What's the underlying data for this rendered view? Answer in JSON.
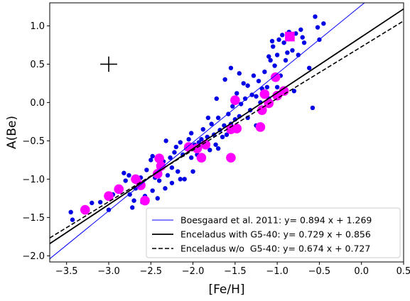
{
  "chart_data": {
    "type": "scatter",
    "xlabel": "[Fe/H]",
    "ylabel": "A(Be)",
    "xlim": [
      -3.7,
      0.5
    ],
    "ylim": [
      -2.08,
      1.3
    ],
    "x_ticks": [
      -3.5,
      -3.0,
      -2.5,
      -2.0,
      -1.5,
      -1.0,
      -0.5,
      0.0,
      0.5
    ],
    "x_tick_labels": [
      "−3.5",
      "−3.0",
      "−2.5",
      "−2.0",
      "−1.5",
      "−1.0",
      "−0.5",
      "0.0",
      "0.5"
    ],
    "y_ticks": [
      -2.0,
      -1.5,
      -1.0,
      -0.5,
      0.0,
      0.5,
      1.0
    ],
    "y_tick_labels": [
      "−2.0",
      "−1.5",
      "−1.0",
      "−0.5",
      "0.0",
      "0.5",
      "1.0"
    ],
    "grid": false,
    "legend_position": "lower-right",
    "error_bar": {
      "x": -3.0,
      "y": 0.5,
      "xerr": 0.1,
      "yerr": 0.1,
      "color": "#000000"
    },
    "series": [
      {
        "kind": "points",
        "color": "#0000e6",
        "points": [
          [
            -3.45,
            -1.43
          ],
          [
            -3.43,
            -1.53
          ],
          [
            -3.2,
            -1.31
          ],
          [
            -3.1,
            -1.3
          ],
          [
            -3.0,
            -1.4
          ],
          [
            -2.95,
            -1.2
          ],
          [
            -2.9,
            -1.13
          ],
          [
            -2.82,
            -0.92
          ],
          [
            -2.8,
            -1.02
          ],
          [
            -2.76,
            -0.95
          ],
          [
            -2.75,
            -1.2
          ],
          [
            -2.72,
            -1.37
          ],
          [
            -2.7,
            -1.28
          ],
          [
            -2.68,
            -1.12
          ],
          [
            -2.62,
            -0.98
          ],
          [
            -2.6,
            -1.09
          ],
          [
            -2.57,
            -1.22
          ],
          [
            -2.55,
            -0.88
          ],
          [
            -2.5,
            -0.75
          ],
          [
            -2.48,
            -1.15
          ],
          [
            -2.45,
            -0.98
          ],
          [
            -2.42,
            -1.25
          ],
          [
            -2.4,
            -1.02
          ],
          [
            -2.38,
            -0.8
          ],
          [
            -2.35,
            -0.77
          ],
          [
            -2.33,
            -1.12
          ],
          [
            -2.3,
            -0.95
          ],
          [
            -2.27,
            -0.72
          ],
          [
            -2.25,
            -0.85
          ],
          [
            -2.22,
            -0.65
          ],
          [
            -2.2,
            -0.58
          ],
          [
            -2.18,
            -0.9
          ],
          [
            -2.15,
            -0.52
          ],
          [
            -2.12,
            -0.68
          ],
          [
            -2.1,
            -1.0
          ],
          [
            -2.08,
            -0.6
          ],
          [
            -2.05,
            -0.48
          ],
          [
            -2.02,
            -0.72
          ],
          [
            -2.0,
            -0.6
          ],
          [
            -1.98,
            -0.55
          ],
          [
            -1.95,
            -0.68
          ],
          [
            -1.93,
            -0.52
          ],
          [
            -1.9,
            -0.48
          ],
          [
            -1.88,
            -0.35
          ],
          [
            -1.85,
            -0.55
          ],
          [
            -1.83,
            -0.45
          ],
          [
            -1.8,
            -0.62
          ],
          [
            -1.78,
            -0.28
          ],
          [
            -1.75,
            -0.42
          ],
          [
            -1.73,
            -0.55
          ],
          [
            -1.7,
            -0.2
          ],
          [
            -1.68,
            -0.36
          ],
          [
            -1.65,
            -0.45
          ],
          [
            -1.63,
            -0.3
          ],
          [
            -1.6,
            -0.42
          ],
          [
            -1.58,
            -0.15
          ],
          [
            -1.55,
            -0.28
          ],
          [
            -1.53,
            -0.05
          ],
          [
            -1.5,
            -0.22
          ],
          [
            -1.48,
            0.12
          ],
          [
            -1.45,
            -0.18
          ],
          [
            -1.43,
            -0.02
          ],
          [
            -1.4,
            0.25
          ],
          [
            -1.38,
            0.05
          ],
          [
            -1.35,
            0.22
          ],
          [
            -1.32,
            -0.1
          ],
          [
            -1.3,
            0.1
          ],
          [
            -1.28,
            0.35
          ],
          [
            -1.25,
            0.08
          ],
          [
            -1.22,
            0.28
          ],
          [
            -1.2,
            0.0
          ],
          [
            -1.18,
            0.18
          ],
          [
            -1.15,
            0.4
          ],
          [
            -1.12,
            0.2
          ],
          [
            -1.1,
            0.05
          ],
          [
            -1.08,
            0.55
          ],
          [
            -1.06,
            0.8
          ],
          [
            -1.05,
            0.73
          ],
          [
            -1.03,
            0.48
          ],
          [
            -1.0,
            0.62
          ],
          [
            -0.98,
            0.82
          ],
          [
            -0.96,
            0.35
          ],
          [
            -0.94,
            0.88
          ],
          [
            -0.92,
            0.78
          ],
          [
            -0.9,
            0.55
          ],
          [
            -0.88,
            0.65
          ],
          [
            -0.86,
            0.92
          ],
          [
            -0.84,
            0.85
          ],
          [
            -0.82,
            0.68
          ],
          [
            -0.8,
            0.15
          ],
          [
            -0.78,
            0.9
          ],
          [
            -0.75,
            0.62
          ],
          [
            -0.72,
            0.95
          ],
          [
            -0.68,
            0.78
          ],
          [
            -0.62,
            0.45
          ],
          [
            -0.58,
            -0.07
          ],
          [
            -0.55,
            1.12
          ],
          [
            -0.52,
            0.98
          ],
          [
            -0.5,
            0.82
          ],
          [
            -0.45,
            1.03
          ],
          [
            -1.55,
            0.45
          ],
          [
            -1.9,
            -0.75
          ],
          [
            -2.0,
            -0.9
          ],
          [
            -1.7,
            -0.6
          ],
          [
            -2.25,
            -1.05
          ],
          [
            -1.62,
            0.3
          ],
          [
            -2.48,
            -0.7
          ],
          [
            -2.15,
            -1.0
          ],
          [
            -1.35,
            -0.2
          ],
          [
            -1.25,
            -0.3
          ],
          [
            -1.0,
            0.2
          ],
          [
            -0.7,
            0.85
          ],
          [
            -3.3,
            -1.38
          ],
          [
            -1.45,
            0.38
          ],
          [
            -2.32,
            -0.5
          ],
          [
            -1.72,
            0.05
          ],
          [
            -2.02,
            -0.4
          ],
          [
            -1.1,
            0.6
          ],
          [
            -2.6,
            -1.3
          ],
          [
            -1.82,
            -0.2
          ]
        ]
      },
      {
        "kind": "points",
        "color": "#ff00ff",
        "points": [
          [
            -3.28,
            -1.4
          ],
          [
            -3.0,
            -1.22
          ],
          [
            -2.88,
            -1.13
          ],
          [
            -2.68,
            -1.0
          ],
          [
            -2.62,
            -1.08
          ],
          [
            -2.57,
            -1.28
          ],
          [
            -2.42,
            -0.93
          ],
          [
            -2.4,
            -0.73
          ],
          [
            -2.38,
            -0.83
          ],
          [
            -2.05,
            -0.58
          ],
          [
            -1.95,
            -0.6
          ],
          [
            -1.9,
            -0.72
          ],
          [
            -1.85,
            -0.55
          ],
          [
            -1.55,
            -0.72
          ],
          [
            -1.55,
            -0.35
          ],
          [
            -1.5,
            0.03
          ],
          [
            -1.48,
            -0.34
          ],
          [
            -1.2,
            -0.32
          ],
          [
            -1.18,
            -0.1
          ],
          [
            -1.15,
            0.11
          ],
          [
            -1.1,
            -0.01
          ],
          [
            -1.02,
            0.33
          ],
          [
            -1.0,
            0.09
          ],
          [
            -0.92,
            0.15
          ]
        ]
      },
      {
        "kind": "square",
        "color": "#ff00ff",
        "x": -0.85,
        "y": 0.86
      },
      {
        "name": "Boesgaard et al. 2011: y= 0.894 x + 1.269",
        "kind": "line",
        "color": "#0000ff",
        "slope": 0.894,
        "intercept": 1.269,
        "style": "thin"
      },
      {
        "name": "Enceladus with G5-40: y= 0.729 x + 0.856",
        "kind": "line",
        "color": "#000000",
        "slope": 0.729,
        "intercept": 0.856,
        "style": "solid"
      },
      {
        "name": "Enceladus w/o  G5-40: y= 0.674 x + 0.727",
        "kind": "line",
        "color": "#000000",
        "slope": 0.674,
        "intercept": 0.727,
        "style": "dashed"
      }
    ]
  }
}
